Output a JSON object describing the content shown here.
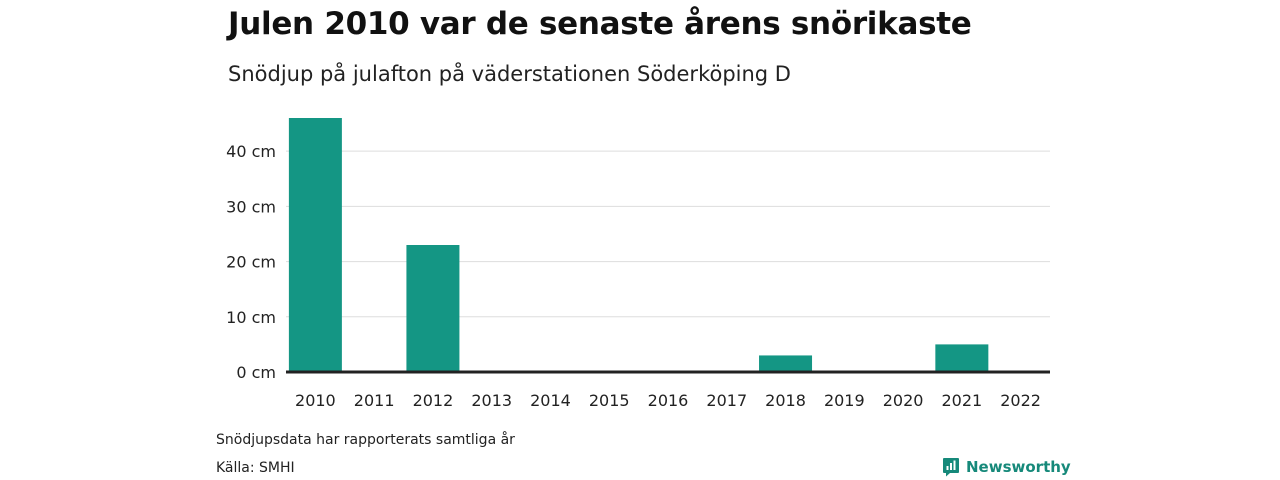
{
  "title": "Julen 2010 var de senaste årens snörikaste",
  "subtitle": "Snödjup på julafton på väderstationen Söderköping D",
  "footnote": "Snödjupsdata har rapporterats samtliga år",
  "source": "Källa: SMHI",
  "brand": {
    "name": "Newsworthy",
    "icon": "newsworthy-logo-icon"
  },
  "colors": {
    "bar": "#149684",
    "grid": "#dddddd",
    "baseline": "#222222",
    "brand": "#16897a"
  },
  "chart_data": {
    "type": "bar",
    "categories": [
      "2010",
      "2011",
      "2012",
      "2013",
      "2014",
      "2015",
      "2016",
      "2017",
      "2018",
      "2019",
      "2020",
      "2021",
      "2022"
    ],
    "values": [
      46,
      0,
      23,
      0,
      0,
      0,
      0,
      0,
      3,
      0,
      0,
      5,
      0
    ],
    "ylim": [
      0,
      46
    ],
    "yticks": [
      0,
      10,
      20,
      30,
      40
    ],
    "ytick_labels": [
      "0 cm",
      "10 cm",
      "20 cm",
      "30 cm",
      "40 cm"
    ],
    "grid": true,
    "legend": "none"
  }
}
